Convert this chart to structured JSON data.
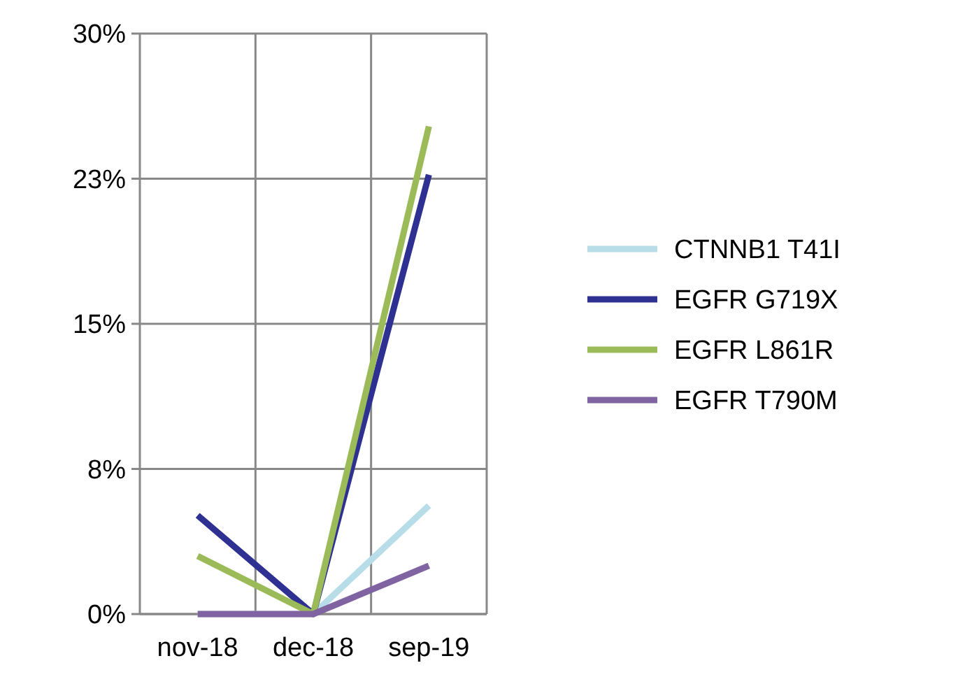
{
  "chart_data": {
    "type": "line",
    "categories": [
      "nov-18",
      "dec-18",
      "sep-19"
    ],
    "series": [
      {
        "name": "CTNNB1 T41I",
        "color": "#b7dde8",
        "values": [
          0,
          0,
          5.6
        ]
      },
      {
        "name": "EGFR G719X",
        "color": "#2e3192",
        "values": [
          5.1,
          0,
          22.7
        ]
      },
      {
        "name": "EGFR L861R",
        "color": "#9bbb59",
        "values": [
          3.0,
          0,
          25.2
        ]
      },
      {
        "name": "EGFR T790M",
        "color": "#8064a2",
        "values": [
          0,
          0,
          2.5
        ]
      }
    ],
    "ylim": [
      0,
      30
    ],
    "yticks": [
      {
        "value": 0,
        "label": "0%"
      },
      {
        "value": 7.5,
        "label": "8%"
      },
      {
        "value": 15,
        "label": "15%"
      },
      {
        "value": 22.5,
        "label": "23%"
      },
      {
        "value": 30,
        "label": "30%"
      }
    ],
    "grid": true,
    "legend": "right",
    "marker": "none",
    "line_style": "solid"
  }
}
